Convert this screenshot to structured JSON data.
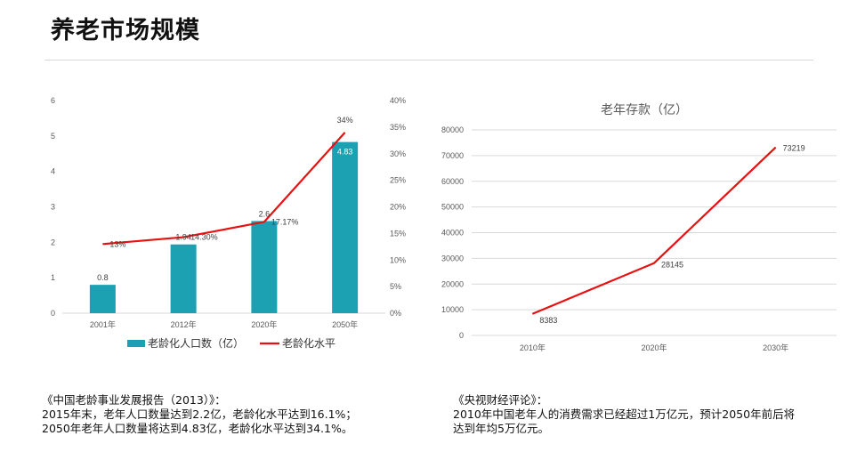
{
  "page": {
    "title": "养老市场规模"
  },
  "chart_data": [
    {
      "type": "bar",
      "title": "",
      "categories": [
        "2001年",
        "2012年",
        "2020年",
        "2050年"
      ],
      "series": [
        {
          "name": "老龄化人口数（亿）",
          "type": "bar",
          "axis": "left",
          "values": [
            0.8,
            1.94,
            2.6,
            4.83
          ],
          "labels": [
            "0.8",
            "1.94",
            "2.6",
            "4.83"
          ],
          "color": "#1ba1b2"
        },
        {
          "name": "老龄化水平",
          "type": "line",
          "axis": "right",
          "values": [
            13,
            14.3,
            17.17,
            34
          ],
          "labels": [
            "13%",
            "14.30%",
            "17.17%",
            "34%"
          ],
          "color": "#e81010"
        }
      ],
      "ylim": [
        0,
        6
      ],
      "yticks": [
        "0",
        "1",
        "2",
        "3",
        "4",
        "5",
        "6"
      ],
      "y2lim": [
        0,
        40
      ],
      "y2ticks": [
        "0%",
        "5%",
        "10%",
        "15%",
        "20%",
        "25%",
        "30%",
        "35%",
        "40%"
      ],
      "legend": "bottom",
      "grid": false
    },
    {
      "type": "line",
      "title": "老年存款（亿）",
      "categories": [
        "2010年",
        "2020年",
        "2030年"
      ],
      "series": [
        {
          "values": [
            8383,
            28145,
            73219
          ],
          "labels": [
            "8383",
            "28145",
            "73219"
          ],
          "color": "#e81010"
        }
      ],
      "ylim": [
        0,
        80000
      ],
      "yticks": [
        "0",
        "10000",
        "20000",
        "30000",
        "40000",
        "50000",
        "60000",
        "70000",
        "80000"
      ],
      "grid": true,
      "legend": "none"
    }
  ],
  "notes": {
    "left": {
      "source": "《中国老龄事业发展报告（2013）》：",
      "line1": "2015年末，老年人口数量达到2.2亿，老龄化水平达到16.1%；",
      "line2": "2050年老年人口数量将达到4.83亿，老龄化水平达到34.1%。"
    },
    "right": {
      "source": "《央视财经评论》：",
      "line1": "2010年中国老年人的消费需求已经超过1万亿元，预计2050年前后将",
      "line2": "达到年均5万亿元。"
    }
  },
  "colors": {
    "bar": "#1ba1b2",
    "line": "#e81010",
    "grid": "#d9d9d9",
    "axis_text": "#595959"
  }
}
